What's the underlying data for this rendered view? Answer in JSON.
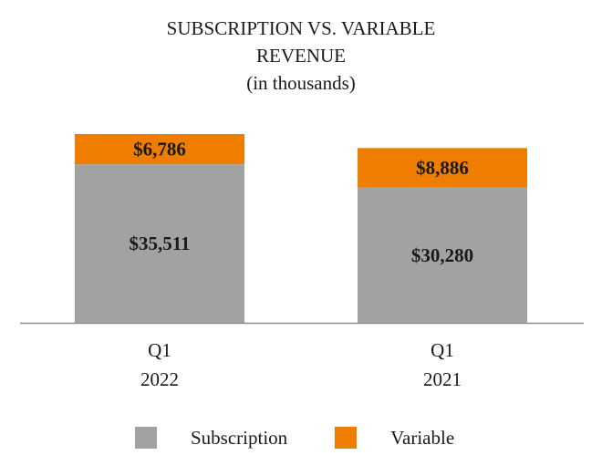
{
  "title": {
    "line1": "SUBSCRIPTION VS. VARIABLE",
    "line2": "REVENUE",
    "subtitle": "(in thousands)"
  },
  "colors": {
    "subscription": "#a1a3a2",
    "variable": "#ef7d00",
    "axis": "#8c8c8c",
    "text": "#1a1a1a"
  },
  "chart_data": {
    "type": "bar",
    "stacked": true,
    "title": "SUBSCRIPTION VS. VARIABLE REVENUE",
    "subtitle": "(in thousands)",
    "categories": [
      [
        "Q1",
        "2022"
      ],
      [
        "Q1",
        "2021"
      ]
    ],
    "series": [
      {
        "name": "Subscription",
        "values": [
          35511,
          30280
        ],
        "labels": [
          "$35,511",
          "$30,280"
        ],
        "color": "#a1a3a2"
      },
      {
        "name": "Variable",
        "values": [
          6786,
          8886
        ],
        "labels": [
          "$6,786",
          "$8,886"
        ],
        "color": "#ef7d00"
      }
    ],
    "ylim": [
      0,
      47000
    ],
    "grid": false,
    "legend_position": "bottom"
  },
  "legend": {
    "items": [
      {
        "label": "Subscription",
        "color": "#a1a3a2"
      },
      {
        "label": "Variable",
        "color": "#ef7d00"
      }
    ]
  }
}
